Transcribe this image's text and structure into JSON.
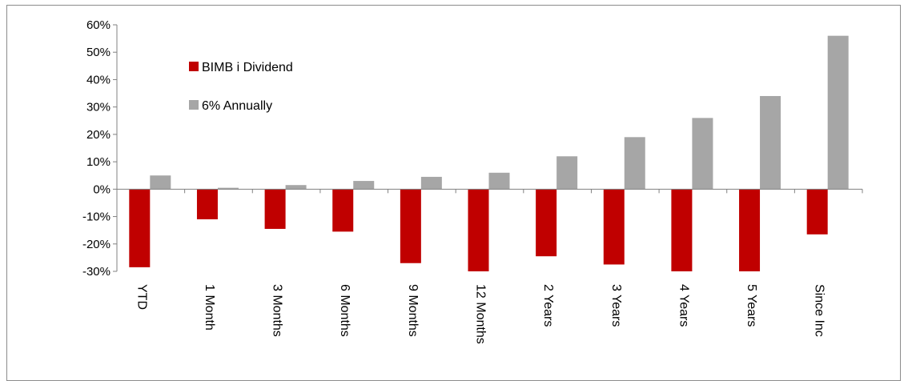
{
  "chart_data": {
    "type": "bar",
    "categories": [
      "YTD",
      "1 Month",
      "3 Months",
      "6 Months",
      "9 Months",
      "12 Months",
      "2 Years",
      "3 Years",
      "4 Years",
      "5 Years",
      "Since Inc"
    ],
    "series": [
      {
        "name": "BIMB i Dividend",
        "color": "#c00000",
        "values": [
          -28.5,
          -11,
          -14.5,
          -15.5,
          -27,
          -30,
          -24.5,
          -27.5,
          -30,
          -30,
          -16.5
        ]
      },
      {
        "name": "6% Annually",
        "color": "#a6a6a6",
        "values": [
          5,
          0.5,
          1.5,
          3,
          4.5,
          6,
          12,
          19,
          26,
          34,
          56
        ]
      }
    ],
    "yticks": [
      "60%",
      "50%",
      "40%",
      "30%",
      "20%",
      "10%",
      "0%",
      "-10%",
      "-20%",
      "-30%"
    ],
    "ylim": [
      -30,
      60
    ],
    "title": "",
    "xlabel": "",
    "ylabel": "",
    "legend_position": "top-left",
    "grid": false
  }
}
